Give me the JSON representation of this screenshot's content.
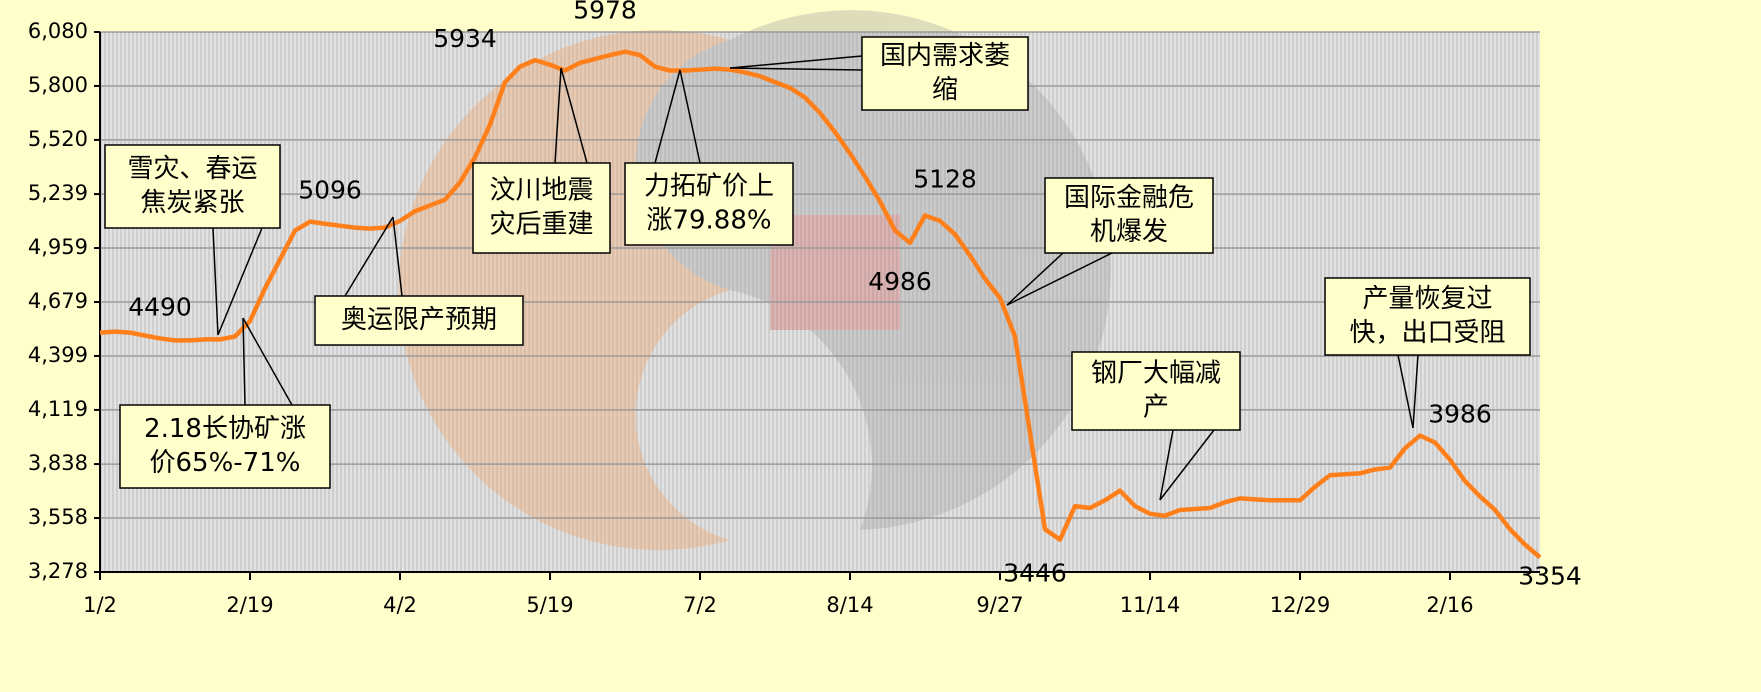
{
  "chart_data": {
    "type": "line",
    "categories": [
      "1/2",
      null,
      null,
      null,
      null,
      null,
      null,
      null,
      null,
      null,
      "2/19",
      null,
      null,
      null,
      null,
      null,
      null,
      null,
      null,
      null,
      "4/2",
      null,
      null,
      null,
      null,
      null,
      null,
      null,
      null,
      null,
      "5/19",
      null,
      null,
      null,
      null,
      null,
      null,
      null,
      null,
      null,
      "7/2",
      null,
      null,
      null,
      null,
      null,
      null,
      null,
      null,
      null,
      "8/14",
      null,
      null,
      null,
      null,
      null,
      null,
      null,
      null,
      null,
      "9/27",
      null,
      null,
      null,
      null,
      null,
      null,
      null,
      null,
      null,
      "11/14",
      null,
      null,
      null,
      null,
      null,
      null,
      null,
      null,
      null,
      "12/29",
      null,
      null,
      null,
      null,
      null,
      null,
      null,
      null,
      null,
      "2/16",
      null,
      null,
      null,
      null,
      null,
      null
    ],
    "series": [
      {
        "color": "#ff7f1a",
        "values": [
          4520,
          4525,
          4520,
          4505,
          4490,
          4480,
          4480,
          4485,
          4485,
          4500,
          4580,
          4750,
          4900,
          5050,
          5096,
          5085,
          5075,
          5065,
          5060,
          5065,
          5100,
          5150,
          5180,
          5210,
          5300,
          5430,
          5600,
          5820,
          5900,
          5934,
          5910,
          5880,
          5920,
          5940,
          5960,
          5978,
          5960,
          5900,
          5880,
          5880,
          5885,
          5890,
          5885,
          5870,
          5850,
          5820,
          5790,
          5740,
          5660,
          5560,
          5450,
          5330,
          5200,
          5050,
          4986,
          5128,
          5100,
          5030,
          4920,
          4800,
          4700,
          4500,
          4000,
          3500,
          3446,
          3620,
          3610,
          3650,
          3700,
          3620,
          3580,
          3570,
          3600,
          3605,
          3610,
          3640,
          3660,
          3655,
          3650,
          3650,
          3650,
          3720,
          3780,
          3785,
          3790,
          3810,
          3820,
          3920,
          3986,
          3950,
          3860,
          3750,
          3670,
          3600,
          3500,
          3420,
          3354
        ],
        "value_labels": [
          null,
          null,
          null,
          null,
          "4490",
          null,
          null,
          null,
          null,
          null,
          null,
          null,
          null,
          null,
          "5096",
          null,
          null,
          null,
          null,
          null,
          null,
          null,
          null,
          null,
          null,
          null,
          null,
          null,
          null,
          "5934",
          null,
          null,
          null,
          null,
          null,
          "5978",
          null,
          null,
          null,
          null,
          null,
          null,
          null,
          null,
          null,
          null,
          null,
          null,
          null,
          null,
          null,
          null,
          null,
          null,
          "4986",
          "5128",
          null,
          null,
          null,
          null,
          null,
          null,
          null,
          null,
          "3446",
          null,
          null,
          null,
          null,
          null,
          null,
          null,
          null,
          null,
          null,
          null,
          null,
          null,
          null,
          null,
          null,
          null,
          null,
          null,
          null,
          null,
          null,
          null,
          "3986",
          null,
          null,
          null,
          null,
          null,
          null,
          null,
          "3354"
        ]
      }
    ],
    "ylim": [
      3278,
      6080
    ],
    "yticks": [
      {
        "value": 3278,
        "label": "3,278"
      },
      {
        "value": 3558,
        "label": "3,558"
      },
      {
        "value": 3838,
        "label": "3,838"
      },
      {
        "value": 4119,
        "label": "4,119"
      },
      {
        "value": 4399,
        "label": "4,399"
      },
      {
        "value": 4679,
        "label": "4,679"
      },
      {
        "value": 4959,
        "label": "4,959"
      },
      {
        "value": 5239,
        "label": "5,239"
      },
      {
        "value": 5520,
        "label": "5,520"
      },
      {
        "value": 5800,
        "label": "5,800"
      },
      {
        "value": 6080,
        "label": "6,080"
      }
    ],
    "grid": true,
    "annotations": [
      {
        "lines": [
          "雪灾、春运",
          "焦炭紧张"
        ]
      },
      {
        "lines": [
          "2.18长协矿涨",
          "价65%-71%"
        ]
      },
      {
        "lines": [
          "奥运限产预期"
        ]
      },
      {
        "lines": [
          "汶川地震",
          "灾后重建"
        ]
      },
      {
        "lines": [
          "力拓矿价上",
          "涨79.88%"
        ]
      },
      {
        "lines": [
          "国内需求萎",
          "缩"
        ]
      },
      {
        "lines": [
          "国际金融危",
          "机爆发"
        ]
      },
      {
        "lines": [
          "钢厂大幅减",
          "产"
        ]
      },
      {
        "lines": [
          "产量恢复过",
          "快，出口受阻"
        ]
      }
    ]
  }
}
